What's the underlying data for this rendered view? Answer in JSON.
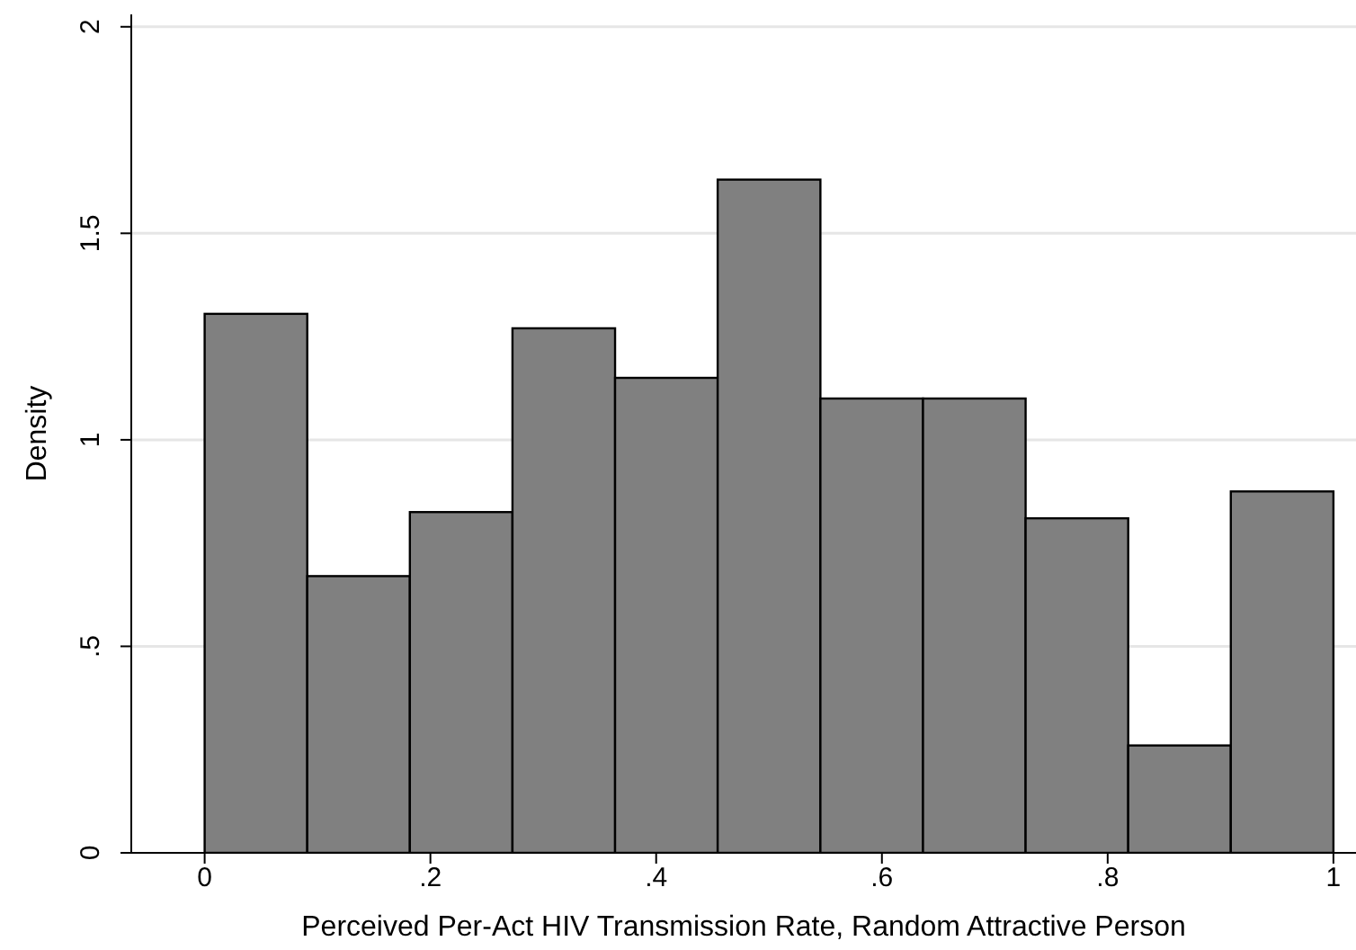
{
  "chart_data": {
    "type": "histogram",
    "xlabel": "Perceived Per-Act HIV Transmission Rate, Random Attractive Person",
    "ylabel": "Density",
    "bins": [
      0,
      0.0909,
      0.1818,
      0.2727,
      0.3636,
      0.4545,
      0.5455,
      0.6364,
      0.7273,
      0.8182,
      0.9091,
      1
    ],
    "values": [
      1.305,
      0.67,
      0.825,
      1.27,
      1.15,
      1.63,
      1.1,
      1.1,
      0.81,
      0.26,
      0.875
    ],
    "color": "#808080",
    "xlim": [
      -0.065,
      1.02
    ],
    "xticks": [
      0,
      {
        "value": 0.2,
        "label": ".2"
      },
      {
        "value": 0.4,
        "label": ".4"
      },
      {
        "value": 0.6,
        "label": ".6"
      },
      {
        "value": 0.8,
        "label": ".8"
      },
      1
    ],
    "ylim": [
      0,
      2.03
    ],
    "yticks": [
      0,
      {
        "value": 0.5,
        "label": ".5"
      },
      1,
      1.5,
      2
    ],
    "grid": "y"
  }
}
